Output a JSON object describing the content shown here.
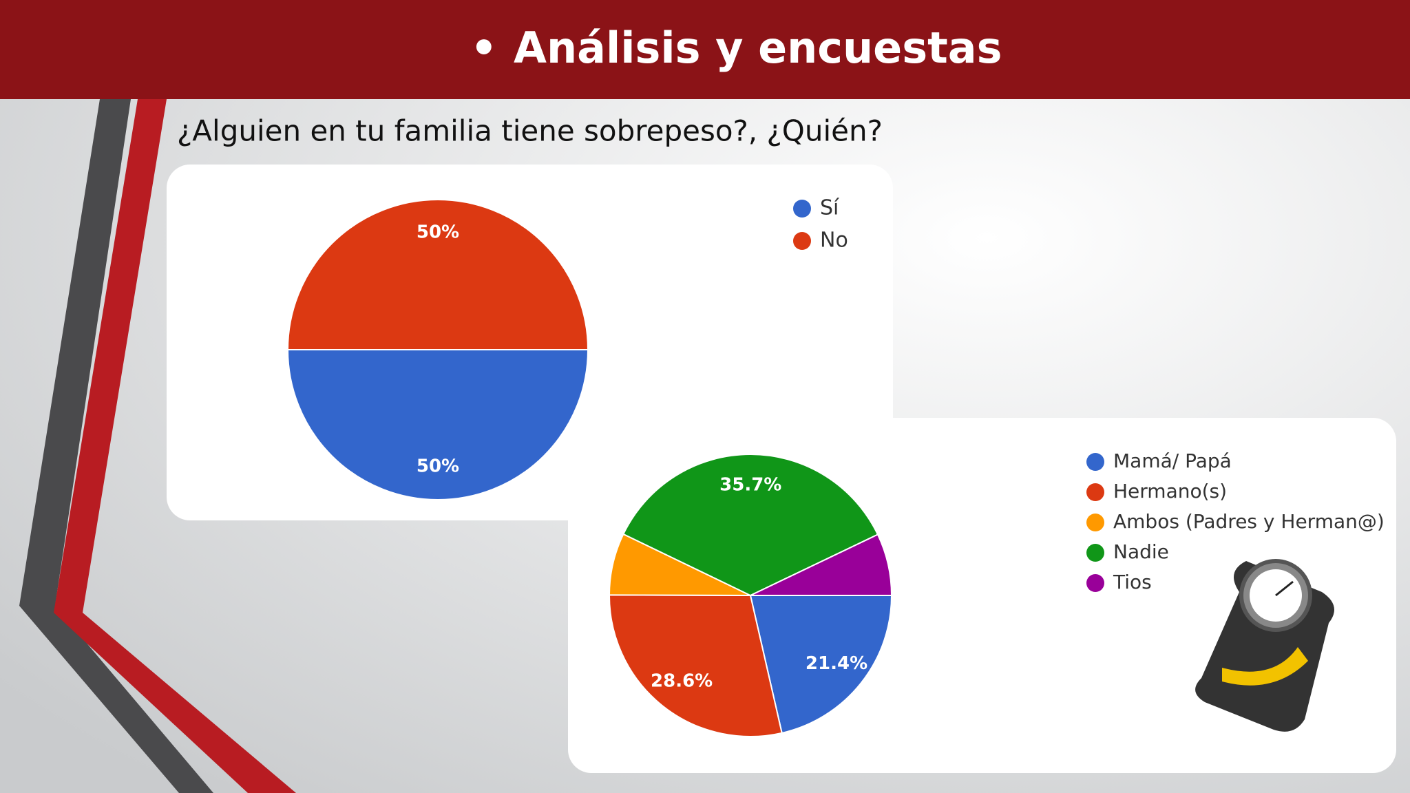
{
  "slide": {
    "title": "Análisis y encuestas",
    "question": "¿Alguien en tu familia tiene sobrepeso?, ¿Quién?"
  },
  "chart_data": [
    {
      "type": "pie",
      "categories": [
        "Sí",
        "No"
      ],
      "values": [
        50,
        50
      ],
      "value_labels": [
        "50%",
        "50%"
      ],
      "colors": [
        "#3366cc",
        "#dc3912"
      ]
    },
    {
      "type": "pie",
      "categories": [
        "Mamá/ Papá",
        "Hermano(s)",
        "Ambos (Padres y Herman@)",
        "Nadie",
        "Tios"
      ],
      "values": [
        21.4,
        28.6,
        7.1,
        35.7,
        7.1
      ],
      "value_labels": [
        "21.4%",
        "28.6%",
        null,
        "35.7%",
        null
      ],
      "colors": [
        "#3366cc",
        "#dc3912",
        "#ff9900",
        "#109618",
        "#990099"
      ]
    }
  ]
}
